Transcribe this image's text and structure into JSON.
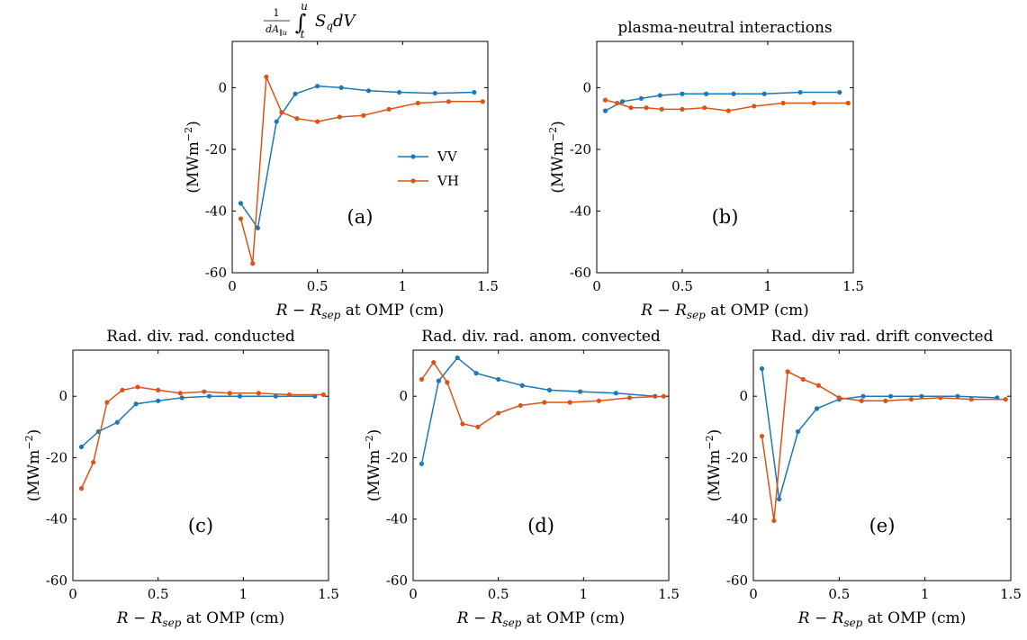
{
  "colors": {
    "vv": "#1f77b4",
    "vh": "#d9541a"
  },
  "legend": {
    "position": "inside-right",
    "entries": [
      "VV",
      "VH"
    ]
  },
  "chart_data": [
    {
      "type": "line",
      "title": "1/dA_∥u ∫_t^u S_q dV",
      "title_parts": {
        "num": "1",
        "den": "dA",
        "den_sub": "∥u",
        "int": "∫",
        "upper": "u",
        "lower": "t",
        "integrand": "S",
        "integrand_sub": "q",
        "diff": "dV"
      },
      "panel_label": "(a)",
      "xlabel": "R − R_sep at OMP (cm)",
      "ylabel": "(MWm⁻²)",
      "xlim": [
        0,
        1.5
      ],
      "ylim": [
        -60,
        15
      ],
      "xticks": [
        "0",
        "0.5",
        "1",
        "1.5"
      ],
      "yticks": [
        "-60",
        "-40",
        "-20",
        "0"
      ],
      "grid": false,
      "show_legend": true,
      "series": [
        {
          "name": "VV",
          "x": [
            0.05,
            0.15,
            0.26,
            0.37,
            0.5,
            0.64,
            0.8,
            0.98,
            1.19,
            1.42
          ],
          "y": [
            -37.5,
            -45.5,
            -11,
            -2,
            0.5,
            0,
            -1,
            -1.5,
            -1.8,
            -1.5
          ]
        },
        {
          "name": "VH",
          "x": [
            0.05,
            0.12,
            0.2,
            0.29,
            0.38,
            0.5,
            0.63,
            0.77,
            0.92,
            1.09,
            1.27,
            1.47
          ],
          "y": [
            -42.5,
            -57,
            3.5,
            -8,
            -10,
            -11,
            -9.5,
            -9,
            -7,
            -5,
            -4.5,
            -4.5
          ]
        }
      ]
    },
    {
      "type": "line",
      "title": "plasma-neutral interactions",
      "panel_label": "(b)",
      "xlabel": "R − R_sep at OMP (cm)",
      "ylabel": "(MWm⁻²)",
      "xlim": [
        0,
        1.5
      ],
      "ylim": [
        -60,
        15
      ],
      "xticks": [
        "0",
        "0.5",
        "1",
        "1.5"
      ],
      "yticks": [
        "-60",
        "-40",
        "-20",
        "0"
      ],
      "grid": false,
      "show_legend": false,
      "series": [
        {
          "name": "VV",
          "x": [
            0.05,
            0.15,
            0.26,
            0.37,
            0.5,
            0.64,
            0.8,
            0.98,
            1.19,
            1.42
          ],
          "y": [
            -7.5,
            -4.5,
            -3.5,
            -2.5,
            -2,
            -2,
            -2,
            -2,
            -1.5,
            -1.5
          ]
        },
        {
          "name": "VH",
          "x": [
            0.05,
            0.12,
            0.2,
            0.29,
            0.38,
            0.5,
            0.63,
            0.77,
            0.92,
            1.09,
            1.27,
            1.47
          ],
          "y": [
            -4,
            -5,
            -6.5,
            -6.5,
            -7,
            -7,
            -6.5,
            -7.5,
            -6,
            -5,
            -5,
            -5
          ]
        }
      ]
    },
    {
      "type": "line",
      "title": "Rad. div. rad. conducted",
      "panel_label": "(c)",
      "xlabel": "R − R_sep at OMP (cm)",
      "ylabel": "(MWm⁻²)",
      "xlim": [
        0,
        1.5
      ],
      "ylim": [
        -60,
        15
      ],
      "xticks": [
        "0",
        "0.5",
        "1",
        "1.5"
      ],
      "yticks": [
        "-60",
        "-40",
        "-20",
        "0"
      ],
      "grid": false,
      "show_legend": false,
      "series": [
        {
          "name": "VV",
          "x": [
            0.05,
            0.15,
            0.26,
            0.37,
            0.5,
            0.64,
            0.8,
            0.98,
            1.19,
            1.42
          ],
          "y": [
            -16.5,
            -11.5,
            -8.5,
            -2.5,
            -1.5,
            -0.5,
            0,
            0,
            0,
            0
          ]
        },
        {
          "name": "VH",
          "x": [
            0.05,
            0.12,
            0.2,
            0.29,
            0.38,
            0.5,
            0.63,
            0.77,
            0.92,
            1.09,
            1.27,
            1.47
          ],
          "y": [
            -30,
            -21.5,
            -2,
            2,
            3,
            2,
            1,
            1.5,
            1,
            1,
            0.5,
            0.5
          ]
        }
      ]
    },
    {
      "type": "line",
      "title": "Rad. div. rad. anom. convected",
      "panel_label": "(d)",
      "xlabel": "R − R_sep at OMP (cm)",
      "ylabel": "(MWm⁻²)",
      "xlim": [
        0,
        1.5
      ],
      "ylim": [
        -60,
        15
      ],
      "xticks": [
        "0",
        "0.5",
        "1",
        "1.5"
      ],
      "yticks": [
        "-60",
        "-40",
        "-20",
        "0"
      ],
      "grid": false,
      "show_legend": false,
      "series": [
        {
          "name": "VV",
          "x": [
            0.05,
            0.15,
            0.26,
            0.37,
            0.5,
            0.64,
            0.8,
            0.98,
            1.19,
            1.42
          ],
          "y": [
            -22,
            5,
            12.5,
            7.5,
            5.5,
            3.5,
            2,
            1.5,
            1,
            0
          ]
        },
        {
          "name": "VH",
          "x": [
            0.05,
            0.12,
            0.2,
            0.29,
            0.38,
            0.5,
            0.63,
            0.77,
            0.92,
            1.09,
            1.27,
            1.47
          ],
          "y": [
            5.5,
            11,
            4.5,
            -9,
            -10,
            -5.5,
            -3,
            -2,
            -2,
            -1.5,
            -0.5,
            0
          ]
        }
      ]
    },
    {
      "type": "line",
      "title": "Rad. div rad. drift convected",
      "panel_label": "(e)",
      "xlabel": "R − R_sep at OMP (cm)",
      "ylabel": "(MWm⁻²)",
      "xlim": [
        0,
        1.5
      ],
      "ylim": [
        -60,
        15
      ],
      "xticks": [
        "0",
        "0.5",
        "1",
        "1.5"
      ],
      "yticks": [
        "-60",
        "-40",
        "-20",
        "0"
      ],
      "grid": false,
      "show_legend": false,
      "series": [
        {
          "name": "VV",
          "x": [
            0.05,
            0.15,
            0.26,
            0.37,
            0.5,
            0.64,
            0.8,
            0.98,
            1.19,
            1.42
          ],
          "y": [
            9,
            -33.5,
            -11.5,
            -4,
            -1,
            0,
            0,
            0,
            0,
            -0.5
          ]
        },
        {
          "name": "VH",
          "x": [
            0.05,
            0.12,
            0.2,
            0.29,
            0.38,
            0.5,
            0.63,
            0.77,
            0.92,
            1.09,
            1.27,
            1.47
          ],
          "y": [
            -13,
            -40.5,
            8,
            5.5,
            3.5,
            -0.5,
            -1.5,
            -1.5,
            -1,
            -0.5,
            -1,
            -1
          ]
        }
      ]
    }
  ]
}
